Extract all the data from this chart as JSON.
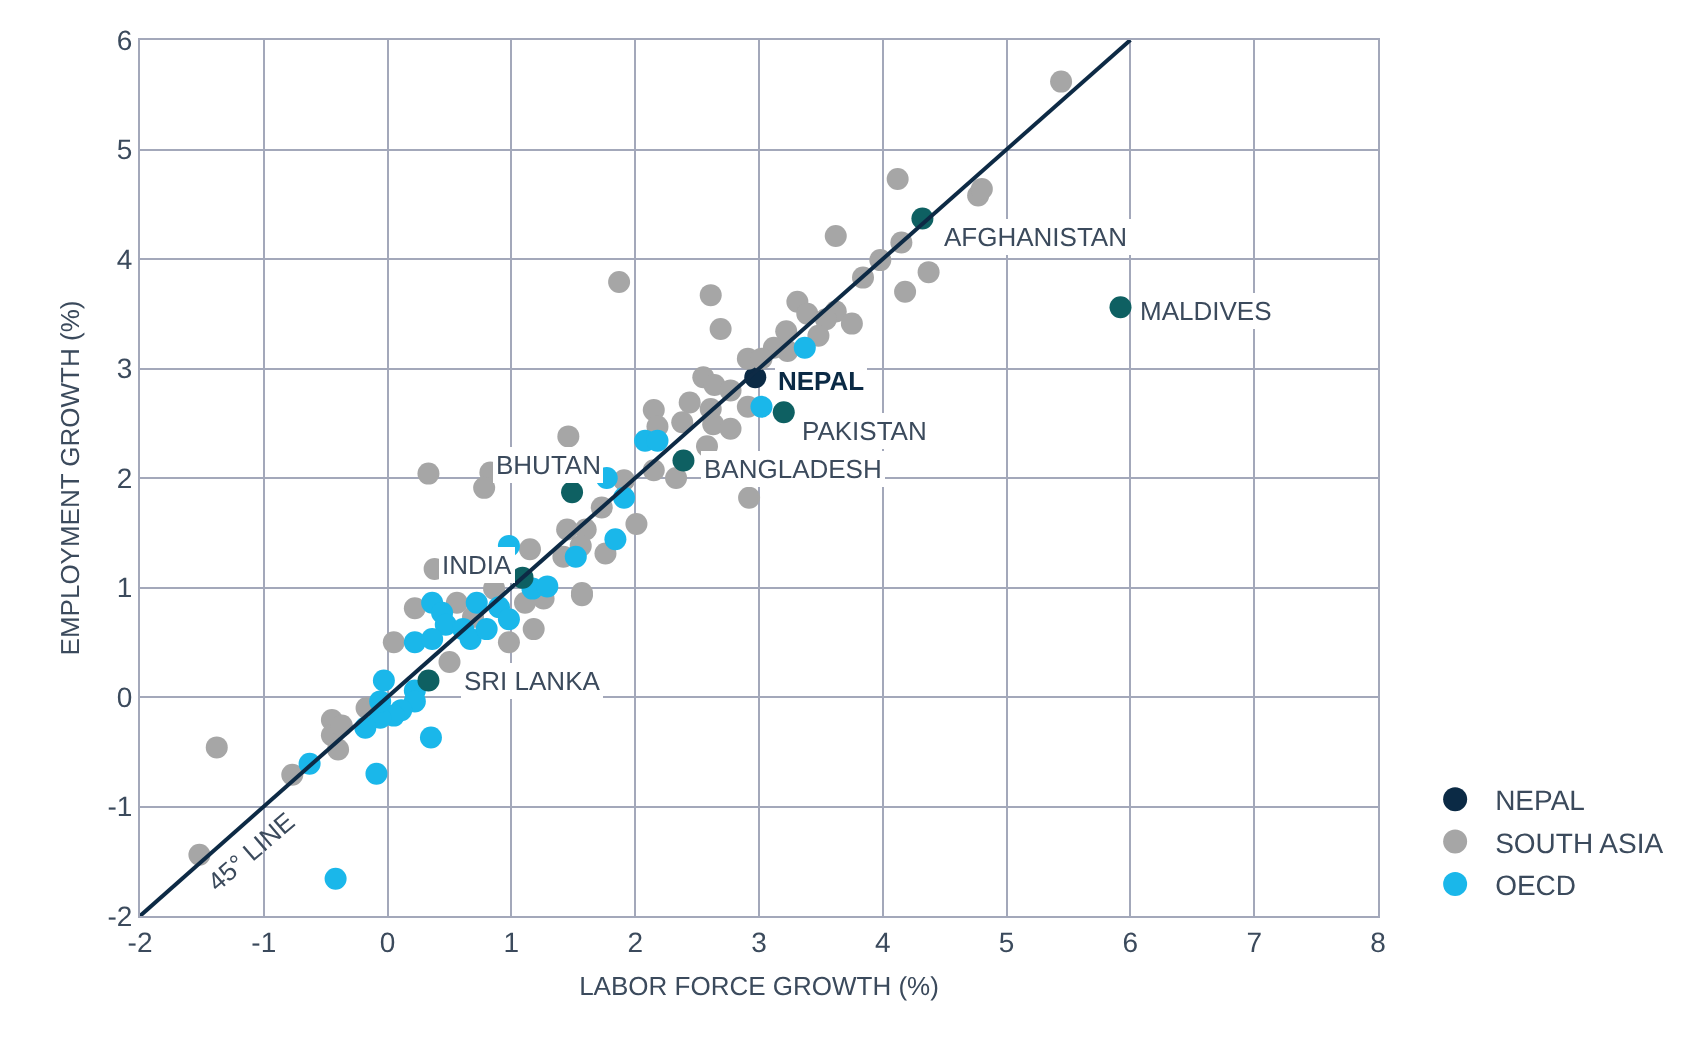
{
  "chart_data": {
    "type": "scatter",
    "xlabel": "LABOR FORCE GROWTH (%)",
    "ylabel": "EMPLOYMENT GROWTH (%)",
    "xlim": [
      -2,
      8
    ],
    "xticks": [
      -2,
      -1,
      0,
      1,
      2,
      3,
      4,
      5,
      6,
      7,
      8
    ],
    "ylim": [
      -2,
      6
    ],
    "yticks": [
      -2,
      -1,
      0,
      1,
      2,
      3,
      4,
      5,
      6
    ],
    "grid": true,
    "legend": "bottom right",
    "marker": "circle",
    "series": [
      {
        "name": "NEPAL",
        "color": "#0b2a45",
        "x": [
          2.97
        ],
        "values": [
          2.92
        ]
      },
      {
        "name": "SOUTH ASIA",
        "color": "#a6a6a6",
        "x": [
          5.44,
          4.12,
          4.77,
          4.8,
          3.62,
          4.15,
          3.98,
          3.84,
          4.37,
          4.18,
          1.87,
          2.61,
          2.69,
          3.31,
          3.39,
          3.62,
          3.54,
          3.75,
          3.48,
          3.22,
          3.12,
          3.23,
          2.91,
          3.02,
          2.55,
          2.64,
          2.77,
          2.44,
          2.61,
          2.15,
          2.18,
          2.38,
          2.63,
          2.77,
          2.58,
          2.91,
          2.33,
          2.92,
          2.15,
          1.46,
          0.33,
          0.83,
          0.78,
          1.91,
          1.73,
          1.45,
          1.6,
          2.01,
          1.76,
          1.42,
          1.15,
          0.38,
          0.22,
          0.56,
          0.69,
          1.26,
          1.57,
          1.18,
          1.11,
          1.56,
          1.57,
          0.98,
          0.05,
          0.5,
          -0.45,
          -0.45,
          -0.37,
          -0.4,
          -0.17,
          -1.38,
          -0.77,
          -1.52,
          0.86
        ],
        "values": [
          5.62,
          4.73,
          4.58,
          4.64,
          4.21,
          4.15,
          3.99,
          3.83,
          3.88,
          3.7,
          3.79,
          3.67,
          3.36,
          3.61,
          3.5,
          3.52,
          3.45,
          3.41,
          3.3,
          3.34,
          3.19,
          3.16,
          3.09,
          3.09,
          2.92,
          2.85,
          2.8,
          2.69,
          2.63,
          2.62,
          2.47,
          2.51,
          2.49,
          2.45,
          2.29,
          2.65,
          2.0,
          1.82,
          2.07,
          2.38,
          2.04,
          2.05,
          1.91,
          1.98,
          1.73,
          1.53,
          1.53,
          1.58,
          1.31,
          1.28,
          1.35,
          1.17,
          0.81,
          0.86,
          0.73,
          0.9,
          0.93,
          0.62,
          0.86,
          1.38,
          0.95,
          0.5,
          0.5,
          0.32,
          -0.21,
          -0.35,
          -0.26,
          -0.48,
          -0.1,
          -0.46,
          -0.71,
          -1.44,
          0.99
        ]
      },
      {
        "name": "OECD",
        "color": "#1ab7ea",
        "x": [
          0.98,
          1.52,
          1.17,
          1.29,
          0.36,
          0.44,
          0.47,
          0.72,
          0.9,
          0.98,
          0.61,
          0.67,
          0.8,
          0.22,
          0.36,
          -0.03,
          0.22,
          0.22,
          0.11,
          0.05,
          -0.06,
          -0.18,
          -0.06,
          0.35,
          -0.09,
          -0.63,
          -0.42,
          2.08,
          2.18,
          1.77,
          1.91,
          1.84,
          3.02,
          3.37
        ],
        "values": [
          1.38,
          1.28,
          0.99,
          1.01,
          0.86,
          0.77,
          0.66,
          0.86,
          0.82,
          0.71,
          0.62,
          0.53,
          0.62,
          0.5,
          0.53,
          0.15,
          0.06,
          -0.04,
          -0.12,
          -0.17,
          -0.19,
          -0.28,
          -0.04,
          -0.37,
          -0.7,
          -0.61,
          -1.66,
          2.34,
          2.34,
          2.0,
          1.82,
          1.44,
          2.65,
          3.19
        ]
      },
      {
        "color": "#0e6062",
        "x": [
          4.32,
          5.92,
          3.2,
          2.39,
          1.49,
          1.09,
          0.33
        ],
        "values": [
          4.37,
          3.56,
          2.6,
          2.16,
          1.87,
          1.09,
          0.15
        ]
      },
      {
        "type": "line",
        "color": "#0d2a45",
        "marker": "none",
        "line_style": "solid",
        "x": [
          -2,
          6
        ],
        "values": [
          -2,
          6
        ]
      }
    ],
    "annotations": [
      {
        "text": "NEPAL",
        "x": 2.97,
        "y": 2.92
      },
      {
        "text": "AFGHANISTAN",
        "x": 4.32,
        "y": 4.37
      },
      {
        "text": "MALDIVES",
        "x": 5.92,
        "y": 3.56
      },
      {
        "text": "PAKISTAN",
        "x": 3.2,
        "y": 2.6
      },
      {
        "text": "BANGLADESH",
        "x": 2.39,
        "y": 2.16
      },
      {
        "text": "BHUTAN",
        "x": 1.49,
        "y": 1.87
      },
      {
        "text": "INDIA",
        "x": 1.09,
        "y": 1.09
      },
      {
        "text": "SRI LANKA",
        "x": 0.33,
        "y": 0.15
      },
      "45° LINE"
    ]
  }
}
